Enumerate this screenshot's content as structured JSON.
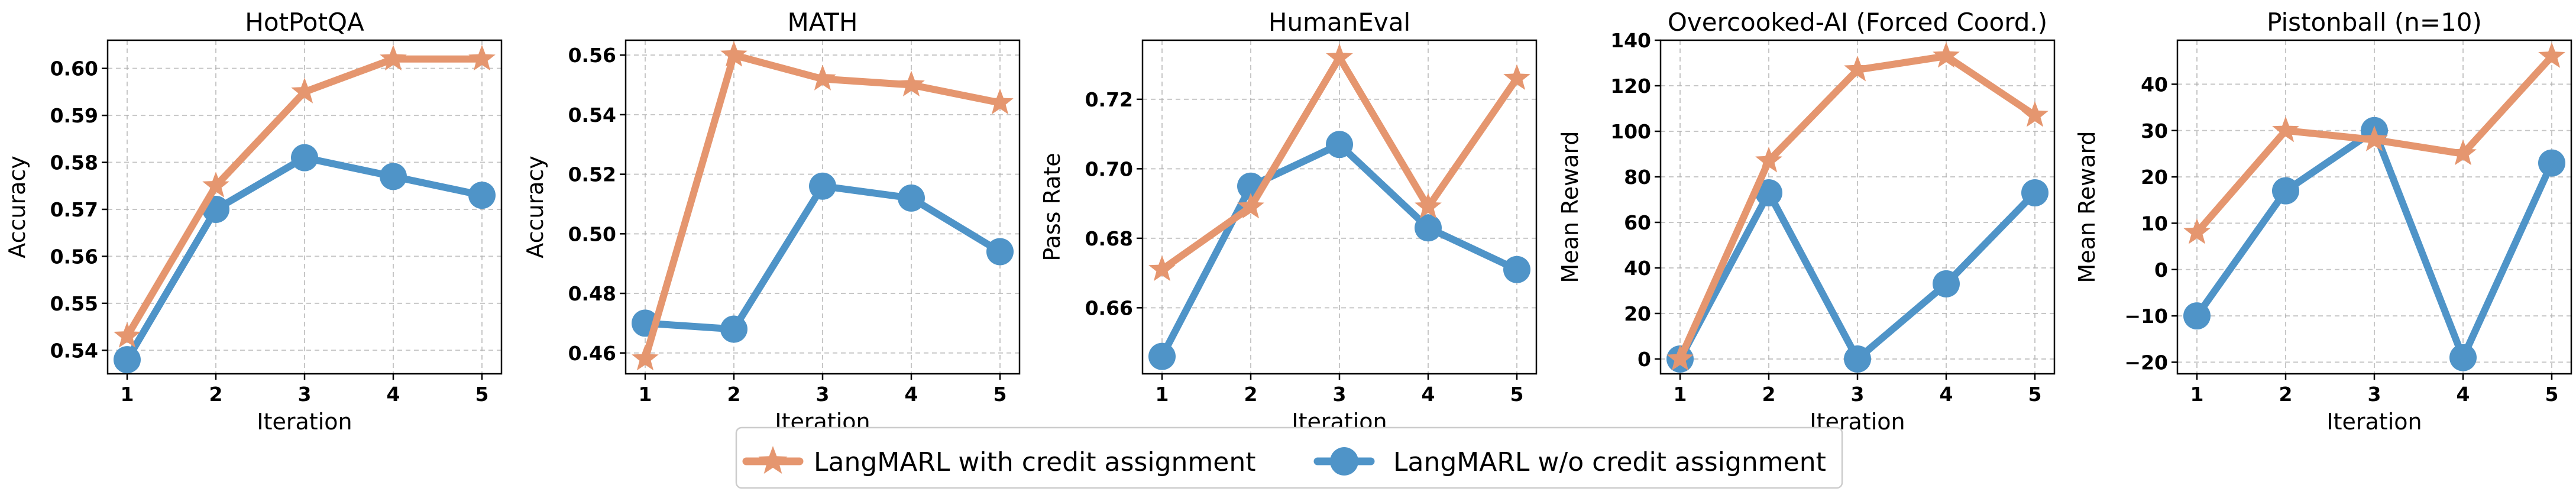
{
  "colors": {
    "with_credit": "#e5966f",
    "without_credit": "#4f94c8"
  },
  "legend": {
    "with_credit": "LangMARL with credit assignment",
    "without_credit": "LangMARL w/o credit assignment"
  },
  "chart_data": [
    {
      "type": "line",
      "title": "HotPotQA",
      "xlabel": "Iteration",
      "ylabel": "Accuracy",
      "x": [
        1,
        2,
        3,
        4,
        5
      ],
      "ylim": [
        0.535,
        0.606
      ],
      "yticks": [
        0.54,
        0.55,
        0.56,
        0.57,
        0.58,
        0.59,
        0.6
      ],
      "ytick_labels": [
        "0.54",
        "0.55",
        "0.56",
        "0.57",
        "0.58",
        "0.59",
        "0.60"
      ],
      "grid": true,
      "series": [
        {
          "name": "LangMARL with credit assignment",
          "marker": "star",
          "values": [
            0.543,
            0.575,
            0.595,
            0.602,
            0.602
          ]
        },
        {
          "name": "LangMARL w/o credit assignment",
          "marker": "circle",
          "values": [
            0.538,
            0.57,
            0.581,
            0.577,
            0.573
          ]
        }
      ]
    },
    {
      "type": "line",
      "title": "MATH",
      "xlabel": "Iteration",
      "ylabel": "Accuracy",
      "x": [
        1,
        2,
        3,
        4,
        5
      ],
      "ylim": [
        0.453,
        0.565
      ],
      "yticks": [
        0.46,
        0.48,
        0.5,
        0.52,
        0.54,
        0.56
      ],
      "ytick_labels": [
        "0.46",
        "0.48",
        "0.50",
        "0.52",
        "0.54",
        "0.56"
      ],
      "grid": true,
      "series": [
        {
          "name": "LangMARL with credit assignment",
          "marker": "star",
          "values": [
            0.458,
            0.56,
            0.552,
            0.55,
            0.544
          ]
        },
        {
          "name": "LangMARL w/o credit assignment",
          "marker": "circle",
          "values": [
            0.47,
            0.468,
            0.516,
            0.512,
            0.494
          ]
        }
      ]
    },
    {
      "type": "line",
      "title": "HumanEval",
      "xlabel": "Iteration",
      "ylabel": "Pass Rate",
      "x": [
        1,
        2,
        3,
        4,
        5
      ],
      "ylim": [
        0.641,
        0.737
      ],
      "yticks": [
        0.66,
        0.68,
        0.7,
        0.72
      ],
      "ytick_labels": [
        "0.66",
        "0.68",
        "0.70",
        "0.72"
      ],
      "grid": true,
      "series": [
        {
          "name": "LangMARL with credit assignment",
          "marker": "star",
          "values": [
            0.671,
            0.689,
            0.732,
            0.689,
            0.726
          ]
        },
        {
          "name": "LangMARL w/o credit assignment",
          "marker": "circle",
          "values": [
            0.646,
            0.695,
            0.707,
            0.683,
            0.671
          ]
        }
      ]
    },
    {
      "type": "line",
      "title": "Overcooked-AI (Forced Coord.)",
      "xlabel": "Iteration",
      "ylabel": "Mean Reward",
      "x": [
        1,
        2,
        3,
        4,
        5
      ],
      "ylim": [
        -6.5,
        140
      ],
      "yticks": [
        0,
        20,
        40,
        60,
        80,
        100,
        120,
        140
      ],
      "ytick_labels": [
        "0",
        "20",
        "40",
        "60",
        "80",
        "100",
        "120",
        "140"
      ],
      "grid": true,
      "series": [
        {
          "name": "LangMARL with credit assignment",
          "marker": "star",
          "values": [
            0,
            87,
            127,
            133,
            107
          ]
        },
        {
          "name": "LangMARL w/o credit assignment",
          "marker": "circle",
          "values": [
            0,
            73,
            0,
            33,
            73
          ]
        }
      ]
    },
    {
      "type": "line",
      "title": "Pistonball (n=10)",
      "xlabel": "Iteration",
      "ylabel": "Mean Reward",
      "x": [
        1,
        2,
        3,
        4,
        5
      ],
      "ylim": [
        -22.5,
        49.5
      ],
      "yticks": [
        -20,
        -10,
        0,
        10,
        20,
        30,
        40
      ],
      "ytick_labels": [
        "−20",
        "−10",
        "0",
        "10",
        "20",
        "30",
        "40"
      ],
      "grid": true,
      "series": [
        {
          "name": "LangMARL with credit assignment",
          "marker": "star",
          "values": [
            8,
            30,
            28,
            25,
            46
          ]
        },
        {
          "name": "LangMARL w/o credit assignment",
          "marker": "circle",
          "values": [
            -10,
            17,
            30,
            -19,
            23
          ]
        }
      ]
    }
  ]
}
